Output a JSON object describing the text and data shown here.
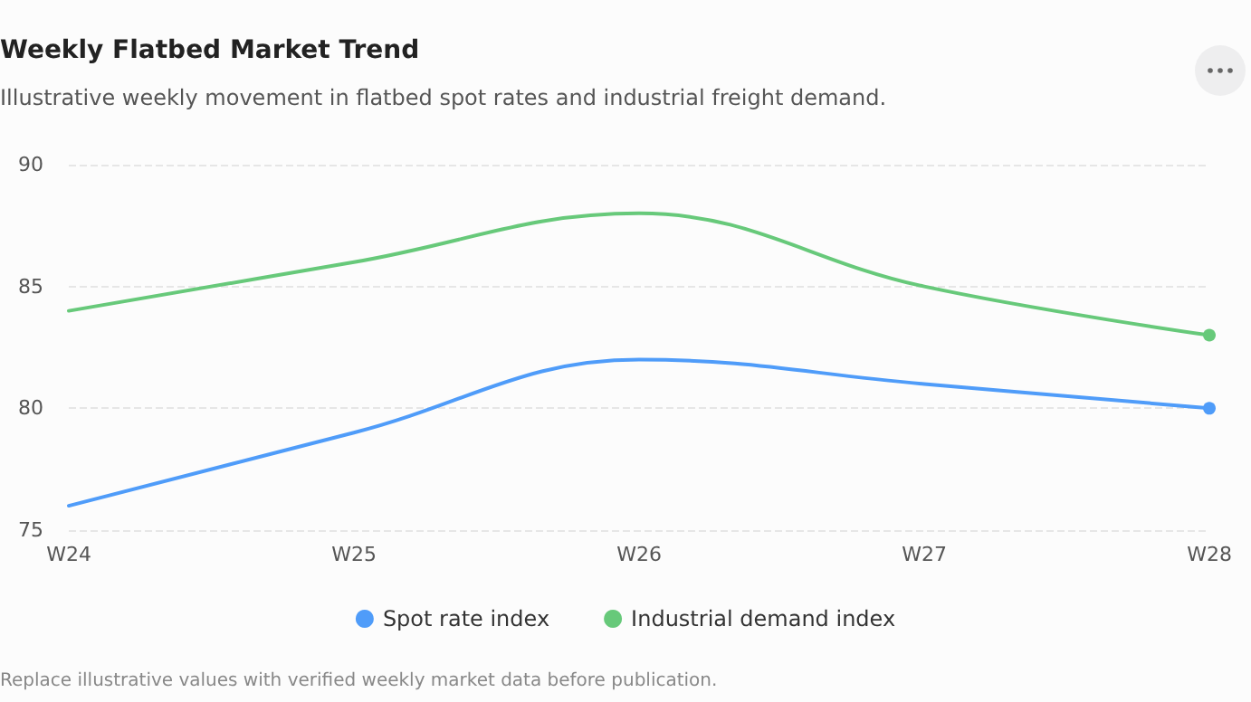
{
  "chart_data": {
    "type": "line",
    "title": "Weekly Flatbed Market Trend",
    "subtitle": "Illustrative weekly movement in flatbed spot rates and industrial freight demand.",
    "categories": [
      "W24",
      "W25",
      "W26",
      "W27",
      "W28"
    ],
    "series": [
      {
        "name": "Spot rate index",
        "color": "#4f9cf9",
        "values": [
          76,
          79,
          82,
          81,
          80
        ]
      },
      {
        "name": "Industrial demand index",
        "color": "#67c97a",
        "values": [
          84,
          86,
          88,
          85,
          83
        ]
      }
    ],
    "ylim": [
      75,
      90
    ],
    "yticks": [
      75,
      80,
      85,
      90
    ],
    "grid": "y",
    "legend": "bottom",
    "line_style": "solid",
    "annotations": [
      "Replace illustrative values with verified weekly market data before publication."
    ]
  }
}
